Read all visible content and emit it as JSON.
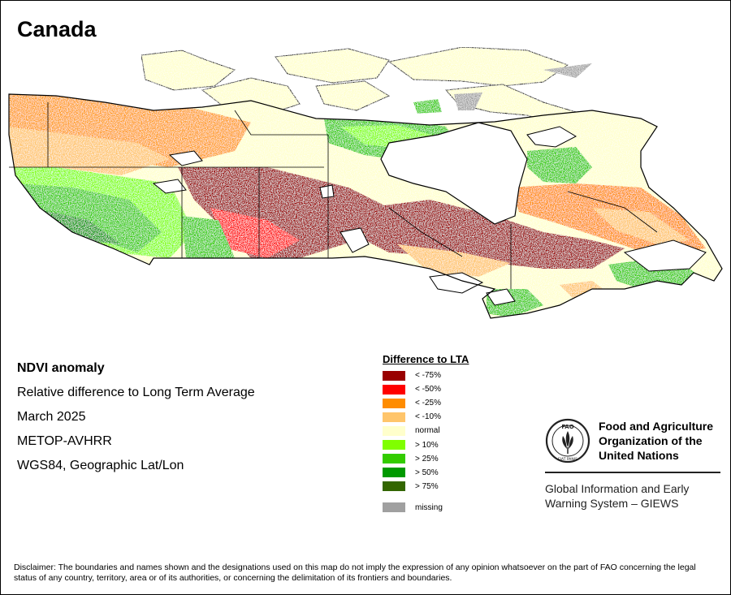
{
  "map": {
    "title": "Canada",
    "info_lines": [
      "NDVI anomaly",
      "Relative difference to Long Term Average",
      "March 2025",
      "METOP-AVHRR",
      "WGS84, Geographic Lat/Lon"
    ]
  },
  "legend": {
    "title": "Difference to LTA",
    "items": [
      {
        "label": "< -75%",
        "color": "#990000"
      },
      {
        "label": "< -50%",
        "color": "#ff0000"
      },
      {
        "label": "< -25%",
        "color": "#ff8c00"
      },
      {
        "label": "< -10%",
        "color": "#ffc56b"
      },
      {
        "label": "normal",
        "color": "#ffffcc"
      },
      {
        "label": "> 10%",
        "color": "#80ff00"
      },
      {
        "label": "> 25%",
        "color": "#33cc00"
      },
      {
        "label": "> 50%",
        "color": "#009900"
      },
      {
        "label": "> 75%",
        "color": "#336600"
      }
    ],
    "missing": {
      "label": "missing",
      "color": "#a0a0a0"
    }
  },
  "branding": {
    "org_name": "Food and Agriculture Organization of the United Nations",
    "org_line1": "Food and Agriculture",
    "org_line2": "Organization of the",
    "org_line3": "United Nations",
    "logo_letters": "FAO",
    "logo_motto": "FIAT PANIS",
    "system_line1": "Global Information and Early",
    "system_line2": "Warning System – GIEWS"
  },
  "disclaimer": "Disclaimer: The boundaries and names shown and the designations used on this map do not imply the expression of any opinion whatsoever on the part of FAO concerning the legal status of any country, territory, area or of its authorities, or concerning the delimitation of its frontiers and boundaries."
}
